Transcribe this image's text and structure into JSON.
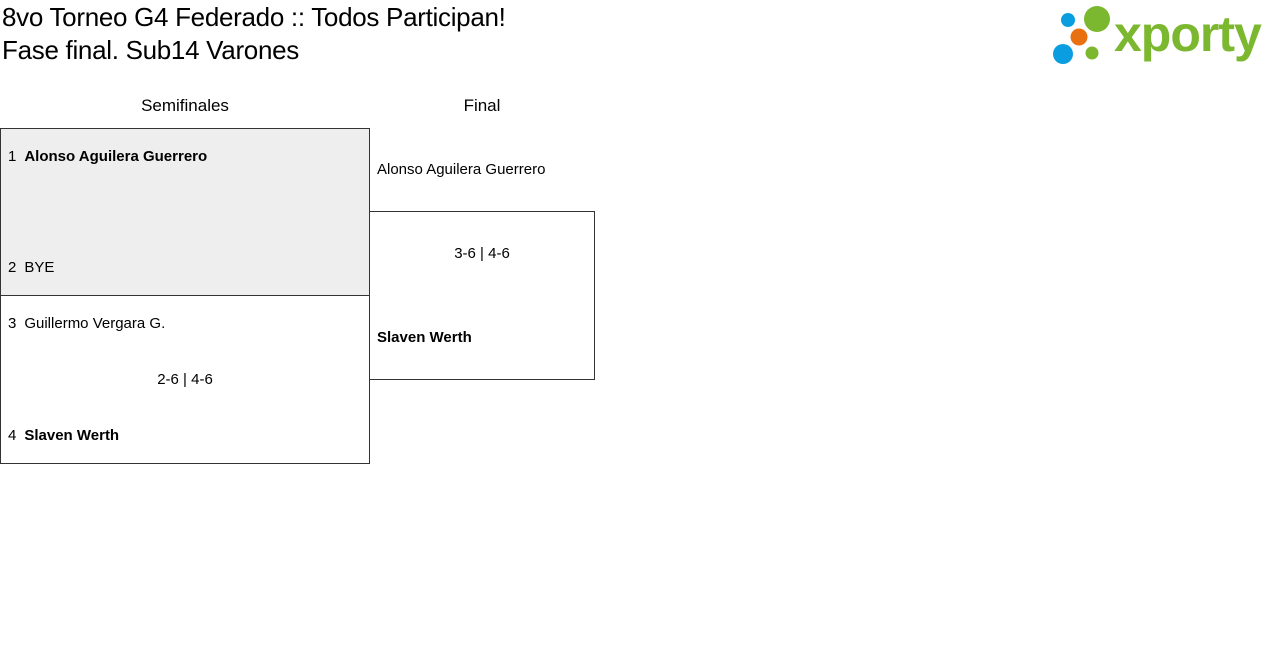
{
  "header": {
    "title_line1": "8vo Torneo G4 Federado :: Todos Participan!",
    "title_line2": "Fase final. Sub14 Varones",
    "logo_text": "xporty",
    "logo_colors": {
      "green": "#7cb82f",
      "blue": "#0a9de0",
      "orange": "#e8700e"
    }
  },
  "rounds": [
    {
      "label": "Semifinales"
    },
    {
      "label": "Final"
    }
  ],
  "semifinals": [
    {
      "p1_seed": "1",
      "p1_name": "Alonso Aguilera Guerrero",
      "p2_seed": "2",
      "p2_name": "BYE",
      "score": "",
      "winner": "p1"
    },
    {
      "p1_seed": "3",
      "p1_name": "Guillermo Vergara G.",
      "p2_seed": "4",
      "p2_name": "Slaven Werth",
      "score": "2-6 | 4-6",
      "winner": "p2"
    }
  ],
  "final": {
    "p1_name": "Alonso Aguilera Guerrero",
    "p2_name": "Slaven Werth",
    "score": "3-6 | 4-6",
    "winner": "p2"
  }
}
